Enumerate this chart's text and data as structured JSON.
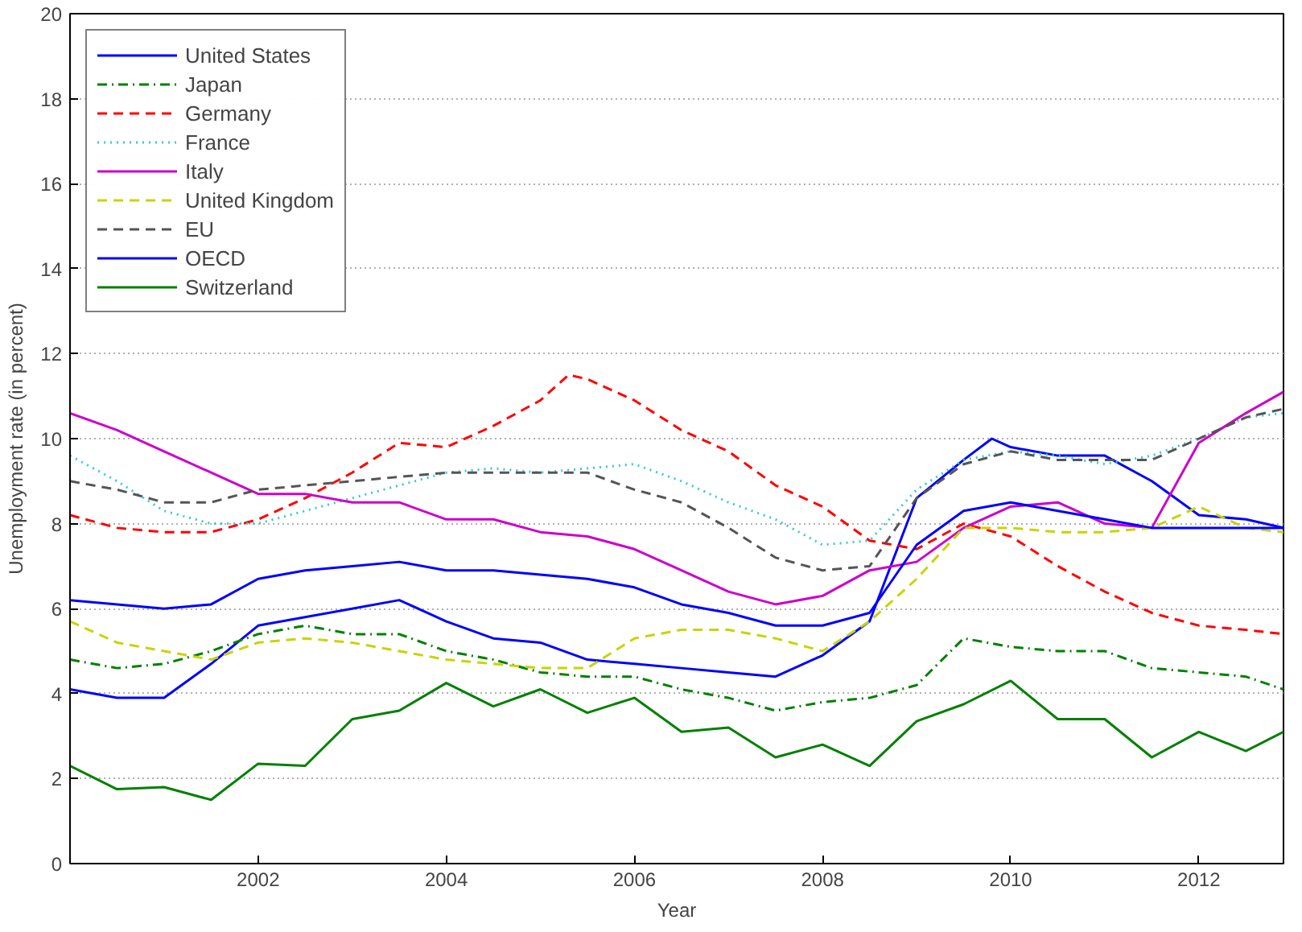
{
  "chart_data": {
    "type": "line",
    "xlabel": "Year",
    "ylabel": "Unemployment rate (in percent)",
    "x": [
      2000,
      2000.5,
      2001,
      2001.5,
      2002,
      2002.5,
      2003,
      2003.5,
      2004,
      2004.5,
      2005,
      2005.5,
      2006,
      2006.5,
      2007,
      2007.5,
      2008,
      2008.5,
      2009,
      2009.5,
      2010,
      2010.5,
      2011,
      2011.5,
      2012,
      2012.5,
      2012.9
    ],
    "xlim": [
      2000,
      2012.9
    ],
    "xticks": [
      2002,
      2004,
      2006,
      2008,
      2010,
      2012
    ],
    "ylim": [
      0,
      20
    ],
    "yticks": [
      0,
      2,
      4,
      6,
      8,
      10,
      12,
      14,
      16,
      18,
      20
    ],
    "grid": "y",
    "legend": "top left",
    "marker": "none",
    "series": [
      {
        "name": "United States",
        "color": "#0000ff",
        "line_style": "solid",
        "x": [
          2000,
          2000.5,
          2001,
          2001.5,
          2002,
          2002.5,
          2003,
          2003.5,
          2004,
          2004.5,
          2005,
          2005.5,
          2006,
          2006.5,
          2007,
          2007.5,
          2008,
          2008.5,
          2009,
          2009.5,
          2009.8,
          2010,
          2010.5,
          2011,
          2011.5,
          2012,
          2012.5,
          2012.9
        ],
        "values": [
          4.1,
          3.9,
          3.9,
          4.7,
          5.6,
          5.8,
          6.0,
          6.2,
          5.7,
          5.3,
          5.2,
          4.8,
          4.7,
          4.6,
          4.5,
          4.4,
          4.9,
          5.7,
          8.6,
          9.5,
          10.0,
          9.8,
          9.6,
          9.6,
          9.0,
          8.2,
          8.1,
          7.9
        ]
      },
      {
        "name": "Japan",
        "color": "#008000",
        "line_style": "dashdot",
        "values": [
          4.8,
          4.6,
          4.7,
          5.0,
          5.4,
          5.6,
          5.4,
          5.4,
          5.0,
          4.8,
          4.5,
          4.4,
          4.4,
          4.1,
          3.9,
          3.6,
          3.8,
          3.9,
          4.2,
          5.3,
          5.1,
          5.0,
          5.0,
          4.6,
          4.5,
          4.4,
          4.1
        ]
      },
      {
        "name": "Germany",
        "color": "#ff0000",
        "line_style": "dashed",
        "x": [
          2000,
          2000.5,
          2001,
          2001.5,
          2002,
          2002.5,
          2003,
          2003.5,
          2004,
          2004.5,
          2005,
          2005.3,
          2005.5,
          2006,
          2006.5,
          2007,
          2007.5,
          2008,
          2008.5,
          2009,
          2009.5,
          2010,
          2010.5,
          2011,
          2011.5,
          2012,
          2012.5,
          2012.9
        ],
        "values": [
          8.2,
          7.9,
          7.8,
          7.8,
          8.1,
          8.6,
          9.2,
          9.9,
          9.8,
          10.3,
          10.9,
          11.5,
          11.4,
          10.9,
          10.2,
          9.7,
          8.9,
          8.4,
          7.6,
          7.4,
          8.0,
          7.7,
          7.0,
          6.4,
          5.9,
          5.6,
          5.5,
          5.4
        ]
      },
      {
        "name": "France",
        "color": "#33cccc",
        "line_style": "dotted",
        "values": [
          9.6,
          9.0,
          8.3,
          8.0,
          8.0,
          8.3,
          8.6,
          8.9,
          9.2,
          9.3,
          9.2,
          9.3,
          9.4,
          9.0,
          8.5,
          8.1,
          7.5,
          7.6,
          8.8,
          9.5,
          9.7,
          9.6,
          9.4,
          9.6,
          10.0,
          10.5,
          10.6
        ]
      },
      {
        "name": "Italy",
        "color": "#cc00cc",
        "line_style": "solid",
        "values": [
          10.6,
          10.2,
          9.7,
          9.2,
          8.7,
          8.7,
          8.5,
          8.5,
          8.1,
          8.1,
          7.8,
          7.7,
          7.4,
          6.9,
          6.4,
          6.1,
          6.3,
          6.9,
          7.1,
          7.9,
          8.4,
          8.5,
          8.0,
          7.9,
          9.9,
          10.6,
          11.1
        ]
      },
      {
        "name": "United Kingdom",
        "color": "#c8d400",
        "line_style": "dashed",
        "values": [
          5.7,
          5.2,
          5.0,
          4.8,
          5.2,
          5.3,
          5.2,
          5.0,
          4.8,
          4.7,
          4.6,
          4.6,
          5.3,
          5.5,
          5.5,
          5.3,
          5.0,
          5.7,
          6.7,
          7.9,
          7.9,
          7.8,
          7.8,
          7.9,
          8.4,
          7.9,
          7.8
        ]
      },
      {
        "name": "EU",
        "color": "#555555",
        "line_style": "dashed",
        "values": [
          9.0,
          8.8,
          8.5,
          8.5,
          8.8,
          8.9,
          9.0,
          9.1,
          9.2,
          9.2,
          9.2,
          9.2,
          8.8,
          8.5,
          7.9,
          7.2,
          6.9,
          7.0,
          8.6,
          9.4,
          9.7,
          9.5,
          9.5,
          9.5,
          10.0,
          10.5,
          10.7
        ]
      },
      {
        "name": "OECD",
        "color": "#0000ff",
        "line_style": "solid",
        "values": [
          6.2,
          6.1,
          6.0,
          6.1,
          6.7,
          6.9,
          7.0,
          7.1,
          6.9,
          6.9,
          6.8,
          6.7,
          6.5,
          6.1,
          5.9,
          5.6,
          5.6,
          5.9,
          7.5,
          8.3,
          8.5,
          8.3,
          8.1,
          7.9,
          7.9,
          7.9,
          7.9
        ]
      },
      {
        "name": "Switzerland",
        "color": "#008000",
        "line_style": "solid",
        "values": [
          2.3,
          1.75,
          1.8,
          1.5,
          2.35,
          2.3,
          3.4,
          3.6,
          4.25,
          3.7,
          4.1,
          3.55,
          3.9,
          3.1,
          3.2,
          2.5,
          2.8,
          2.3,
          3.35,
          3.75,
          4.3,
          3.4,
          3.4,
          2.5,
          3.1,
          2.65,
          3.1
        ]
      }
    ]
  }
}
